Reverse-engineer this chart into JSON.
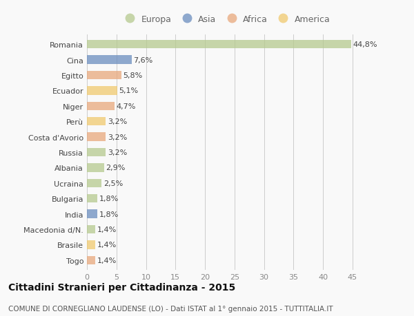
{
  "countries": [
    "Romania",
    "Cina",
    "Egitto",
    "Ecuador",
    "Niger",
    "Perù",
    "Costa d'Avorio",
    "Russia",
    "Albania",
    "Ucraina",
    "Bulgaria",
    "India",
    "Macedonia d/N.",
    "Brasile",
    "Togo"
  ],
  "values": [
    44.8,
    7.6,
    5.8,
    5.1,
    4.7,
    3.2,
    3.2,
    3.2,
    2.9,
    2.5,
    1.8,
    1.8,
    1.4,
    1.4,
    1.4
  ],
  "labels": [
    "44,8%",
    "7,6%",
    "5,8%",
    "5,1%",
    "4,7%",
    "3,2%",
    "3,2%",
    "3,2%",
    "2,9%",
    "2,5%",
    "1,8%",
    "1,8%",
    "1,4%",
    "1,4%",
    "1,4%"
  ],
  "colors": [
    "#b5c98e",
    "#6a8dbf",
    "#e8a87c",
    "#f0c96e",
    "#e8a87c",
    "#f0c96e",
    "#e8a87c",
    "#b5c98e",
    "#b5c98e",
    "#b5c98e",
    "#b5c98e",
    "#6a8dbf",
    "#b5c98e",
    "#f0c96e",
    "#e8a87c"
  ],
  "continents": [
    "Europa",
    "Asia",
    "Africa",
    "America"
  ],
  "legend_colors": [
    "#b5c98e",
    "#6a8dbf",
    "#e8a87c",
    "#f0c96e"
  ],
  "title": "Cittadini Stranieri per Cittadinanza - 2015",
  "subtitle": "COMUNE DI CORNEGLIANO LAUDENSE (LO) - Dati ISTAT al 1° gennaio 2015 - TUTTITALIA.IT",
  "xlim": [
    0,
    47
  ],
  "xticks": [
    0,
    5,
    10,
    15,
    20,
    25,
    30,
    35,
    40,
    45
  ],
  "bg_color": "#f9f9f9",
  "bar_height": 0.55,
  "title_fontsize": 10,
  "subtitle_fontsize": 7.5,
  "label_fontsize": 8,
  "tick_fontsize": 8,
  "legend_fontsize": 9
}
